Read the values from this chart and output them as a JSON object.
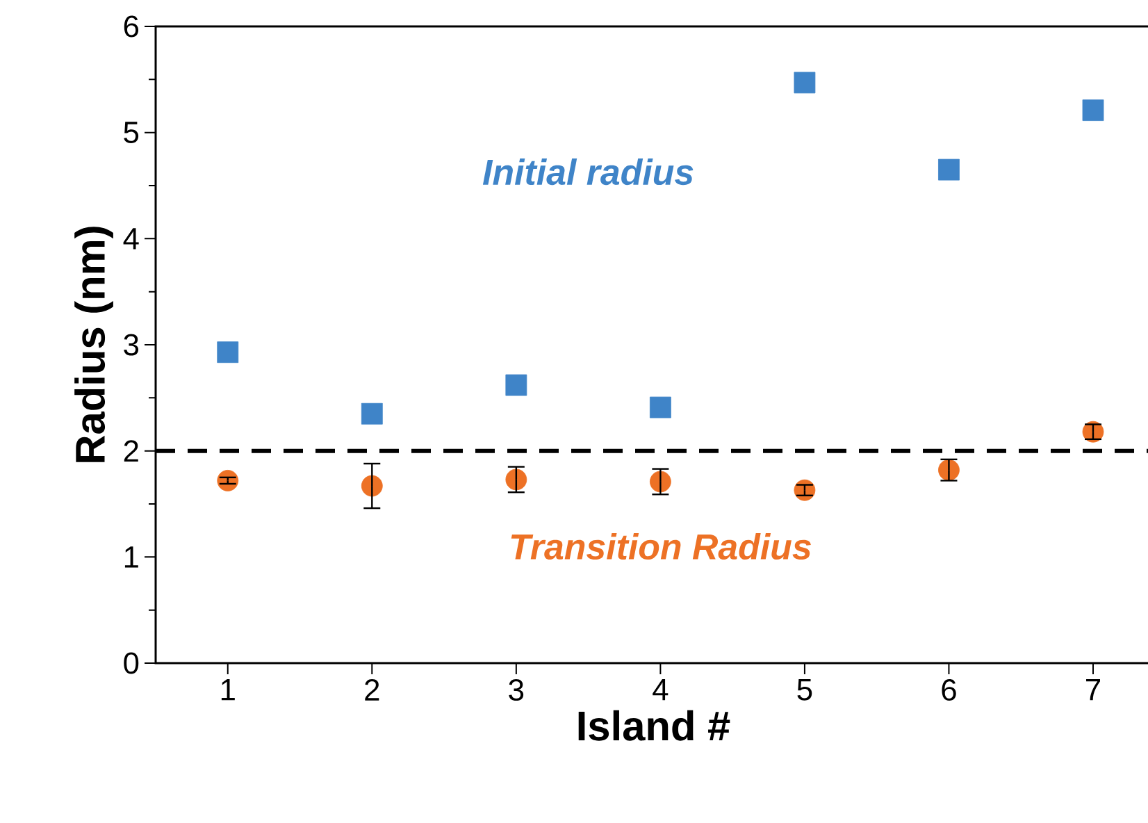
{
  "chart_data": {
    "type": "scatter",
    "xlabel": "Island #",
    "ylabel": "Radius (nm)",
    "x": [
      1,
      2,
      3,
      4,
      5,
      6,
      7
    ],
    "series": [
      {
        "name": "Initial radius",
        "color": "#3f84c8",
        "marker": "square",
        "values": [
          2.93,
          2.35,
          2.62,
          2.41,
          5.47,
          4.65,
          5.21
        ]
      },
      {
        "name": "Transition Radius",
        "color": "#ed7125",
        "marker": "circle",
        "values": [
          1.72,
          1.67,
          1.73,
          1.71,
          1.63,
          1.82,
          2.18
        ],
        "errors": [
          0.03,
          0.21,
          0.12,
          0.12,
          0.05,
          0.1,
          0.07
        ]
      }
    ],
    "xlim": [
      0.5,
      7.4
    ],
    "ylim": [
      0,
      6
    ],
    "xticks": [
      1,
      2,
      3,
      4,
      5,
      6,
      7
    ],
    "yticks": [
      0,
      1,
      2,
      3,
      4,
      5,
      6
    ],
    "ref_lines": [
      {
        "axis": "y",
        "value": 2,
        "color": "#000000",
        "line_style": "dashed"
      }
    ]
  }
}
